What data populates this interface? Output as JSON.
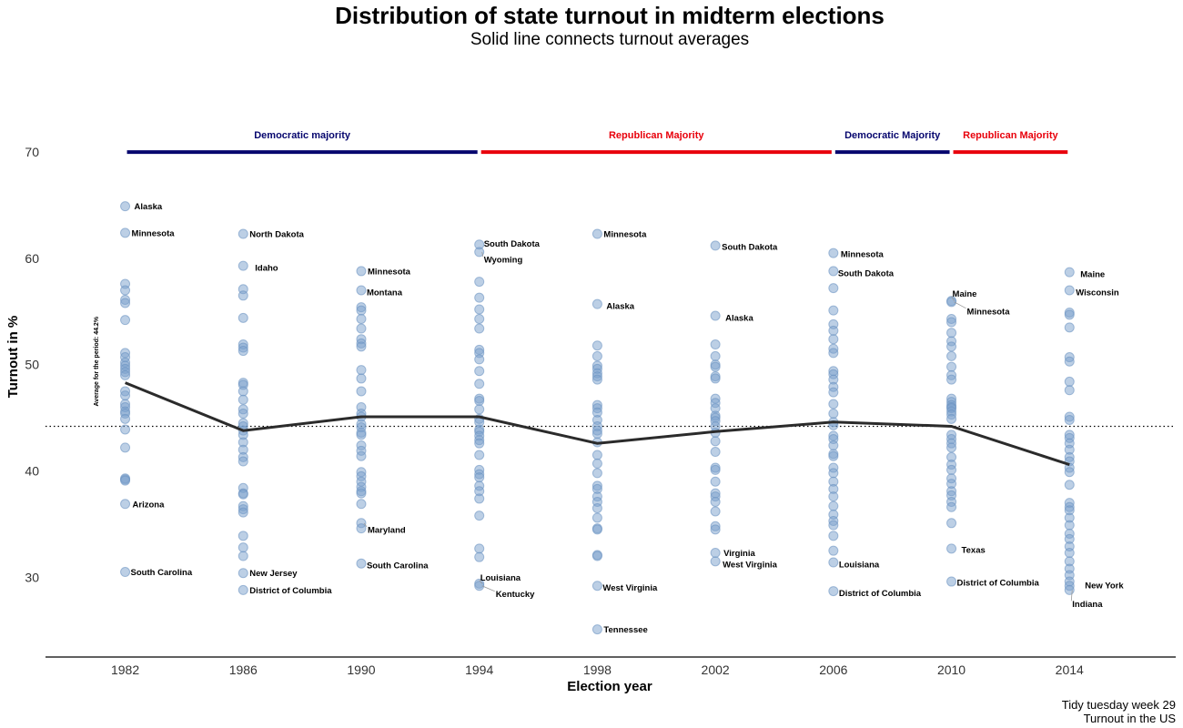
{
  "title": "Distribution of state turnout in midterm elections",
  "subtitle": "Solid line connects turnout averages",
  "caption": [
    "Tidy tuesday week 29",
    "Turnout in the US"
  ],
  "colors": {
    "democratic": "#06066e",
    "republican": "#e8000b",
    "points": "#7aa0cc",
    "avg_line": "#2b2b2b"
  },
  "chart_data": {
    "type": "scatter",
    "xlabel": "Election year",
    "ylabel": "Turnout in %",
    "x_ticks": [
      1982,
      1986,
      1990,
      1994,
      1998,
      2002,
      2006,
      2010,
      2014
    ],
    "y_ticks": [
      30,
      40,
      50,
      60,
      70
    ],
    "xlim": [
      1979.3,
      2017.6
    ],
    "ylim": [
      22.5,
      76
    ],
    "grid": false,
    "period_average": {
      "value": 44.2,
      "label": "Average for the period: 44.2%"
    },
    "averages": [
      {
        "year": 1982,
        "value": 48.3
      },
      {
        "year": 1986,
        "value": 43.8
      },
      {
        "year": 1990,
        "value": 45.1
      },
      {
        "year": 1994,
        "value": 45.1
      },
      {
        "year": 1998,
        "value": 42.6
      },
      {
        "year": 2002,
        "value": 43.7
      },
      {
        "year": 2006,
        "value": 44.6
      },
      {
        "year": 2010,
        "value": 44.2
      },
      {
        "year": 2014,
        "value": 40.6
      }
    ],
    "majority_periods": [
      {
        "label": "Democratic majority",
        "party": "democratic",
        "from": 1982,
        "to": 1994
      },
      {
        "label": "Republican Majority",
        "party": "republican",
        "from": 1994,
        "to": 2006
      },
      {
        "label": "Democratic Majority",
        "party": "democratic",
        "from": 2006,
        "to": 2010
      },
      {
        "label": "Republican Majority",
        "party": "republican",
        "from": 2010,
        "to": 2014
      }
    ],
    "series": [
      {
        "year": 1982,
        "values": [
          64.9,
          62.4,
          57.6,
          57.0,
          56.1,
          55.8,
          54.2,
          51.1,
          50.7,
          50.2,
          49.9,
          49.6,
          49.3,
          49.0,
          47.5,
          47.1,
          46.3,
          46.0,
          45.6,
          45.4,
          44.9,
          43.9,
          42.2,
          39.3,
          39.2,
          39.1,
          36.9,
          30.5
        ]
      },
      {
        "year": 1986,
        "values": [
          62.3,
          59.3,
          57.1,
          56.5,
          54.4,
          51.9,
          51.6,
          51.3,
          48.3,
          48.1,
          47.5,
          46.7,
          45.8,
          45.4,
          44.5,
          44.2,
          43.8,
          43.4,
          42.7,
          42.0,
          41.3,
          40.9,
          38.4,
          37.9,
          37.8,
          36.7,
          36.4,
          36.1,
          33.9,
          32.8,
          32.0,
          30.4,
          28.8
        ]
      },
      {
        "year": 1990,
        "values": [
          58.8,
          57.0,
          55.4,
          55.1,
          54.3,
          53.4,
          52.4,
          52.0,
          51.7,
          49.5,
          48.7,
          47.5,
          46.0,
          45.4,
          45.1,
          44.4,
          44.1,
          43.6,
          43.4,
          42.4,
          41.9,
          41.4,
          39.9,
          39.5,
          39.0,
          38.5,
          38.1,
          37.9,
          36.9,
          35.1,
          34.6,
          31.3
        ]
      },
      {
        "year": 1994,
        "values": [
          61.3,
          60.6,
          57.8,
          56.3,
          55.2,
          54.3,
          53.4,
          51.4,
          51.1,
          50.5,
          49.4,
          48.2,
          46.8,
          46.6,
          45.8,
          44.9,
          44.6,
          43.9,
          43.7,
          43.3,
          42.9,
          42.6,
          41.5,
          40.1,
          39.7,
          39.4,
          38.6,
          38.1,
          37.4,
          35.8,
          32.7,
          31.9,
          29.4,
          29.2
        ]
      },
      {
        "year": 1998,
        "values": [
          62.3,
          55.7,
          51.8,
          50.8,
          49.9,
          49.6,
          49.2,
          48.9,
          48.6,
          46.2,
          45.9,
          45.5,
          44.8,
          44.2,
          43.8,
          43.5,
          42.7,
          41.5,
          40.7,
          39.8,
          38.6,
          38.3,
          37.6,
          37.1,
          36.5,
          35.6,
          34.6,
          34.5,
          32.1,
          32.0,
          29.2,
          25.1
        ]
      },
      {
        "year": 2002,
        "values": [
          61.2,
          54.6,
          51.9,
          50.8,
          50.0,
          49.8,
          48.9,
          48.7,
          46.8,
          46.4,
          45.9,
          45.2,
          45.0,
          44.7,
          44.2,
          43.6,
          42.8,
          41.8,
          40.3,
          40.1,
          39.0,
          37.9,
          37.6,
          37.1,
          36.2,
          34.8,
          34.5,
          32.3,
          31.5
        ]
      },
      {
        "year": 2006,
        "values": [
          60.5,
          58.8,
          57.2,
          55.1,
          53.8,
          53.2,
          52.4,
          51.5,
          51.1,
          49.4,
          49.1,
          48.6,
          47.9,
          47.4,
          46.3,
          45.4,
          44.6,
          44.3,
          43.3,
          43.0,
          42.4,
          41.6,
          41.4,
          40.3,
          39.8,
          39.0,
          38.3,
          37.6,
          36.7,
          35.9,
          35.3,
          34.9,
          33.9,
          32.5,
          31.4,
          28.7
        ]
      },
      {
        "year": 2010,
        "values": [
          56.0,
          55.9,
          54.3,
          54.0,
          53.0,
          52.2,
          51.7,
          50.8,
          49.8,
          49.0,
          48.6,
          46.8,
          46.5,
          46.2,
          46.0,
          45.9,
          45.6,
          45.3,
          44.9,
          43.4,
          43.0,
          42.6,
          42.2,
          41.3,
          40.6,
          40.1,
          39.3,
          38.8,
          38.1,
          37.7,
          37.1,
          36.6,
          35.1,
          32.7,
          29.6
        ]
      },
      {
        "year": 2014,
        "values": [
          58.7,
          57.0,
          54.9,
          54.7,
          53.5,
          50.7,
          50.3,
          48.4,
          47.6,
          45.1,
          44.8,
          43.4,
          43.1,
          42.6,
          42.0,
          41.3,
          40.9,
          40.3,
          39.9,
          38.7,
          37.0,
          36.6,
          36.3,
          35.6,
          34.9,
          34.1,
          33.6,
          32.9,
          32.3,
          31.5,
          30.8,
          30.2,
          29.6,
          29.2,
          28.8
        ]
      }
    ],
    "annotations": [
      {
        "year": 1982,
        "value": 64.9,
        "label": "Alaska"
      },
      {
        "year": 1982,
        "value": 62.4,
        "label": "Minnesota"
      },
      {
        "year": 1982,
        "value": 36.9,
        "label": "Arizona"
      },
      {
        "year": 1982,
        "value": 30.5,
        "label": "South Carolina"
      },
      {
        "year": 1986,
        "value": 62.3,
        "label": "North Dakota"
      },
      {
        "year": 1986,
        "value": 59.3,
        "label": "Idaho"
      },
      {
        "year": 1986,
        "value": 30.4,
        "label": "New Jersey"
      },
      {
        "year": 1986,
        "value": 28.8,
        "label": "District of Columbia"
      },
      {
        "year": 1990,
        "value": 58.8,
        "label": "Minnesota"
      },
      {
        "year": 1990,
        "value": 57.0,
        "label": "Montana"
      },
      {
        "year": 1990,
        "value": 35.1,
        "label": "Maryland"
      },
      {
        "year": 1990,
        "value": 31.3,
        "label": "South Carolina"
      },
      {
        "year": 1994,
        "value": 61.3,
        "label": "South Dakota"
      },
      {
        "year": 1994,
        "value": 60.6,
        "label": "Wyoming"
      },
      {
        "year": 1994,
        "value": 29.4,
        "label": "Louisiana"
      },
      {
        "year": 1994,
        "value": 29.2,
        "label": "Kentucky"
      },
      {
        "year": 1998,
        "value": 62.3,
        "label": "Minnesota"
      },
      {
        "year": 1998,
        "value": 55.7,
        "label": "Alaska"
      },
      {
        "year": 1998,
        "value": 29.2,
        "label": "West Virginia"
      },
      {
        "year": 1998,
        "value": 25.1,
        "label": "Tennessee"
      },
      {
        "year": 2002,
        "value": 61.2,
        "label": "South Dakota"
      },
      {
        "year": 2002,
        "value": 54.6,
        "label": "Alaska"
      },
      {
        "year": 2002,
        "value": 32.3,
        "label": "Virginia"
      },
      {
        "year": 2002,
        "value": 31.5,
        "label": "West Virginia"
      },
      {
        "year": 2006,
        "value": 60.5,
        "label": "Minnesota"
      },
      {
        "year": 2006,
        "value": 58.8,
        "label": "South Dakota"
      },
      {
        "year": 2006,
        "value": 31.4,
        "label": "Louisiana"
      },
      {
        "year": 2006,
        "value": 28.7,
        "label": "District of Columbia"
      },
      {
        "year": 2010,
        "value": 56.0,
        "label": "Maine"
      },
      {
        "year": 2010,
        "value": 55.9,
        "label": "Minnesota"
      },
      {
        "year": 2010,
        "value": 32.7,
        "label": "Texas"
      },
      {
        "year": 2010,
        "value": 29.6,
        "label": "District of Columbia"
      },
      {
        "year": 2014,
        "value": 58.7,
        "label": "Maine"
      },
      {
        "year": 2014,
        "value": 57.0,
        "label": "Wisconsin"
      },
      {
        "year": 2014,
        "value": 29.6,
        "label": "New York"
      },
      {
        "year": 2014,
        "value": 28.8,
        "label": "Indiana"
      }
    ]
  }
}
